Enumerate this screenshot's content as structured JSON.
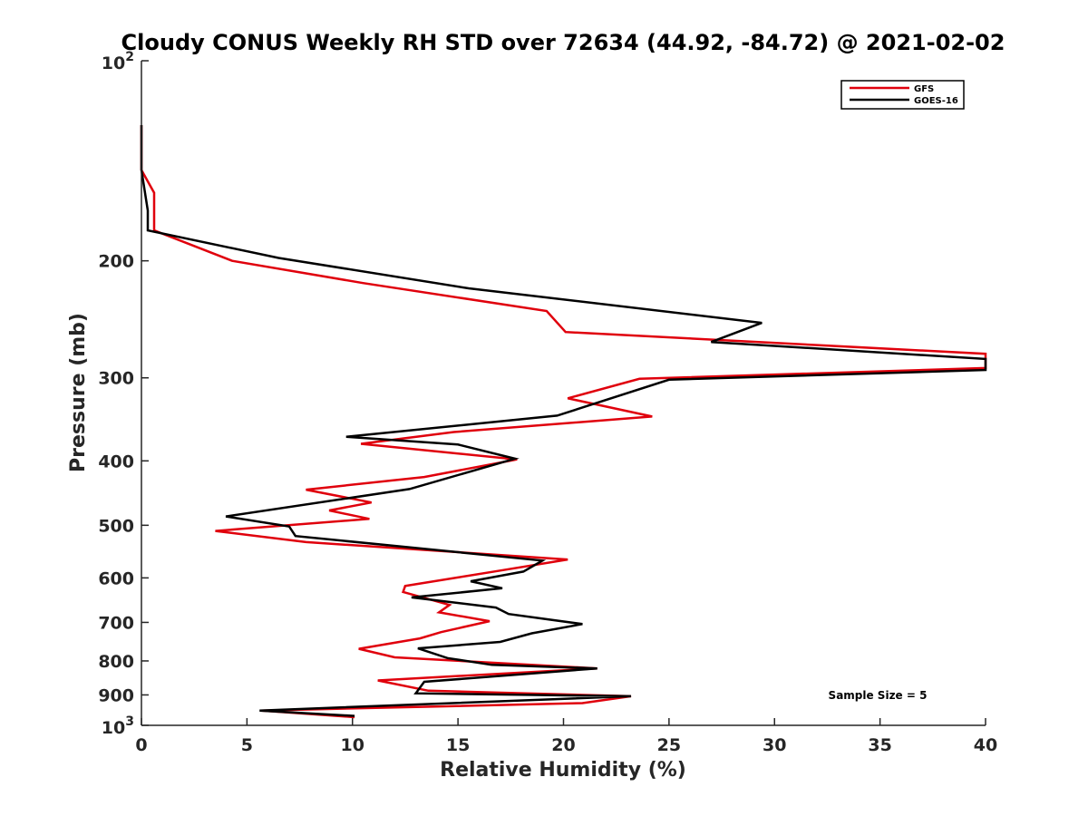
{
  "chart_data": {
    "type": "line",
    "title": "Cloudy CONUS Weekly RH STD over 72634 (44.92, -84.72) @ 2021-02-02",
    "xlabel": "Relative Humidity (%)",
    "ylabel": "Pressure (mb)",
    "xlim": [
      0,
      40
    ],
    "ylim": [
      100,
      1000
    ],
    "yscale": "log",
    "y_reversed": true,
    "grid": false,
    "legend_position": "top-right",
    "x_ticks": [
      "0",
      "5",
      "10",
      "15",
      "20",
      "25",
      "30",
      "35",
      "40"
    ],
    "y_ticks": [
      {
        "value": 100,
        "base": "10",
        "exp": "2"
      },
      {
        "value": 200,
        "label": "200"
      },
      {
        "value": 300,
        "label": "300"
      },
      {
        "value": 400,
        "label": "400"
      },
      {
        "value": 500,
        "label": "500"
      },
      {
        "value": 600,
        "label": "600"
      },
      {
        "value": 700,
        "label": "700"
      },
      {
        "value": 800,
        "label": "800"
      },
      {
        "value": 900,
        "label": "900"
      },
      {
        "value": 1000,
        "base": "10",
        "exp": "3"
      }
    ],
    "series": [
      {
        "name": "GFS",
        "color": "#e0000c",
        "points": [
          [
            0.0,
            125
          ],
          [
            0.0,
            146
          ],
          [
            0.6,
            158
          ],
          [
            0.6,
            180
          ],
          [
            4.3,
            200
          ],
          [
            10.5,
            216
          ],
          [
            19.2,
            238
          ],
          [
            20.1,
            256
          ],
          [
            40.0,
            276
          ],
          [
            40.0,
            290
          ],
          [
            23.6,
            301
          ],
          [
            20.2,
            322
          ],
          [
            24.2,
            343
          ],
          [
            14.8,
            362
          ],
          [
            10.4,
            377
          ],
          [
            17.8,
            398
          ],
          [
            13.4,
            423
          ],
          [
            7.8,
            442
          ],
          [
            10.9,
            462
          ],
          [
            8.9,
            475
          ],
          [
            10.8,
            489
          ],
          [
            3.5,
            510
          ],
          [
            7.8,
            530
          ],
          [
            20.2,
            563
          ],
          [
            17.0,
            585
          ],
          [
            12.5,
            617
          ],
          [
            12.4,
            630
          ],
          [
            14.6,
            659
          ],
          [
            14.1,
            676
          ],
          [
            16.5,
            697
          ],
          [
            14.2,
            724
          ],
          [
            13.2,
            740
          ],
          [
            10.3,
            767
          ],
          [
            12.0,
            790
          ],
          [
            21.6,
            821
          ],
          [
            11.2,
            856
          ],
          [
            13.6,
            887
          ],
          [
            23.2,
            904
          ],
          [
            20.9,
            926
          ],
          [
            5.7,
            950
          ],
          [
            10.1,
            972
          ]
        ]
      },
      {
        "name": "GOES-16",
        "color": "#000000",
        "points": [
          [
            0.0,
            125
          ],
          [
            0.0,
            146
          ],
          [
            0.3,
            168
          ],
          [
            0.3,
            180
          ],
          [
            6.5,
            198
          ],
          [
            15.5,
            220
          ],
          [
            29.4,
            248
          ],
          [
            27.0,
            265
          ],
          [
            40.0,
            281
          ],
          [
            40.0,
            292
          ],
          [
            25.0,
            302
          ],
          [
            19.7,
            342
          ],
          [
            9.7,
            368
          ],
          [
            15.0,
            378
          ],
          [
            17.7,
            397
          ],
          [
            12.7,
            441
          ],
          [
            4.0,
            485
          ],
          [
            7.0,
            502
          ],
          [
            7.3,
            519
          ],
          [
            19.0,
            565
          ],
          [
            18.1,
            587
          ],
          [
            15.6,
            607
          ],
          [
            17.1,
            622
          ],
          [
            12.8,
            642
          ],
          [
            16.8,
            665
          ],
          [
            17.4,
            680
          ],
          [
            20.9,
            704
          ],
          [
            18.5,
            727
          ],
          [
            17.0,
            749
          ],
          [
            13.1,
            766
          ],
          [
            14.5,
            792
          ],
          [
            16.6,
            811
          ],
          [
            21.6,
            821
          ],
          [
            13.4,
            860
          ],
          [
            13.0,
            895
          ],
          [
            23.2,
            904
          ],
          [
            5.6,
            950
          ],
          [
            10.1,
            968
          ]
        ]
      }
    ],
    "annotation": "Sample Size = 5"
  }
}
